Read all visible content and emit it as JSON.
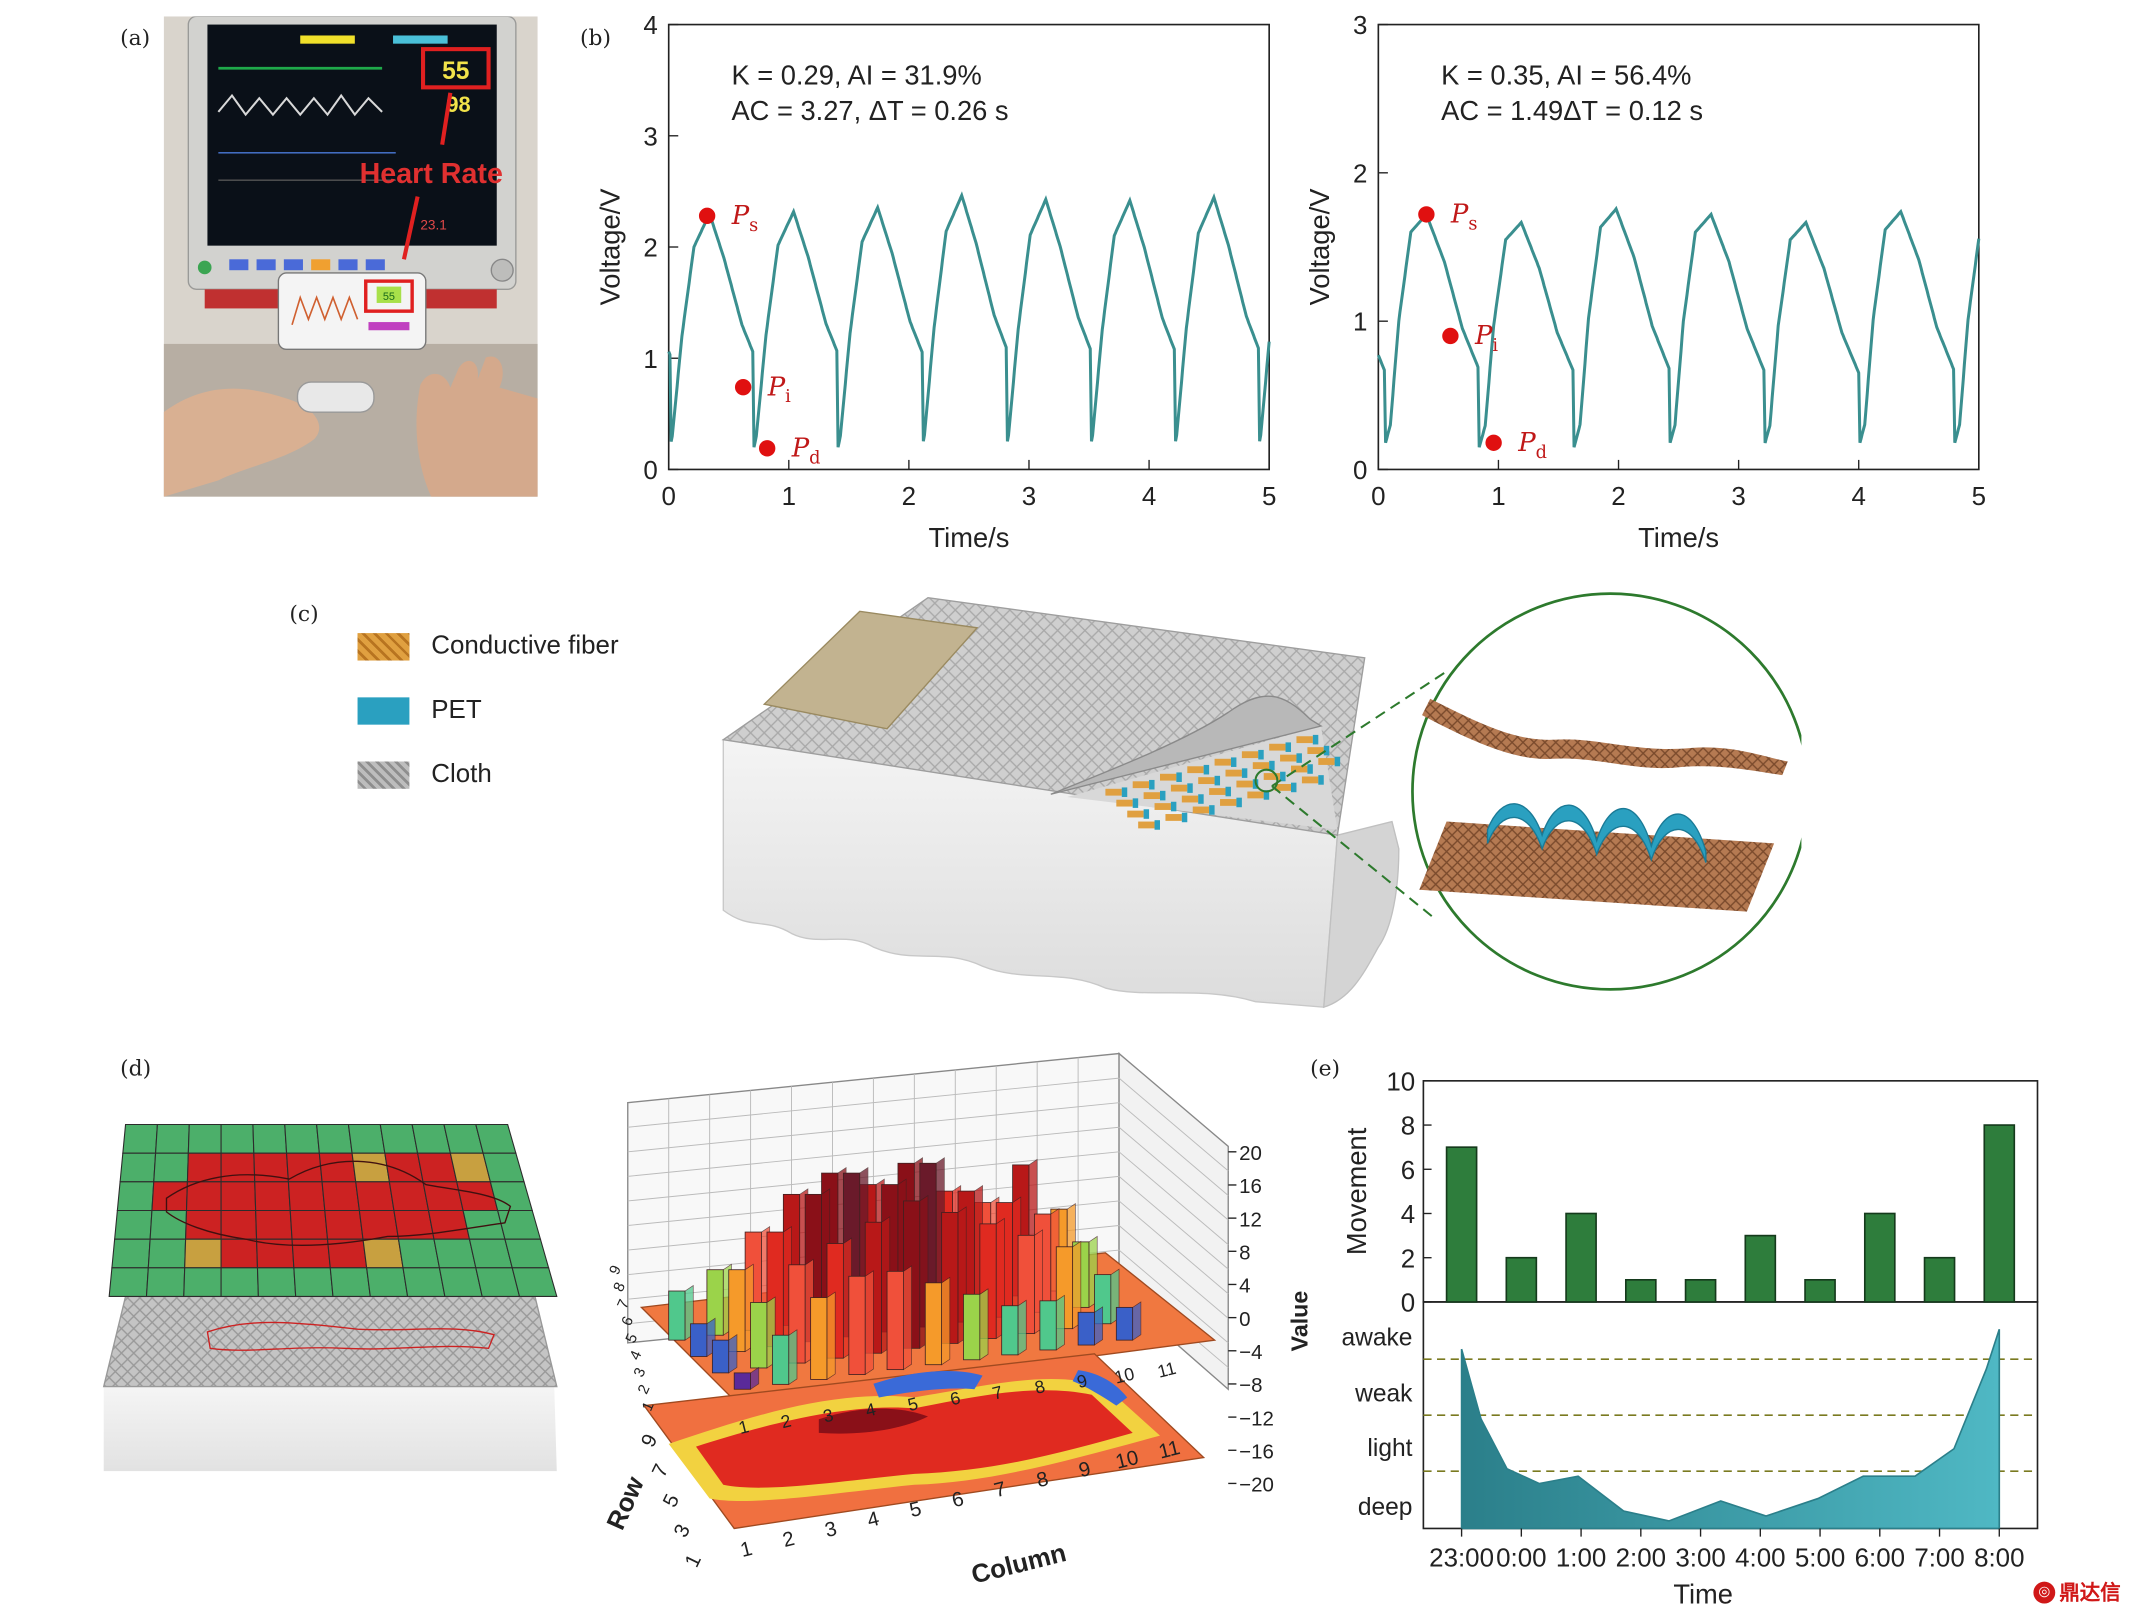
{
  "panel_labels": {
    "a": "(a)",
    "b": "(b)",
    "c": "(c)",
    "d": "(d)",
    "e": "(e)"
  },
  "panel_a": {
    "monitor_heart_rate": "55",
    "monitor_spo2": "98",
    "monitor_temp": "23.1",
    "annotation": "Heart Rate",
    "phone_heart_rate": "55"
  },
  "panel_c": {
    "legend": [
      {
        "label": "Conductive fiber",
        "color": "#e0a040"
      },
      {
        "label": "PET",
        "color": "#2aa0c0"
      },
      {
        "label": "Cloth",
        "color": "#a8a8a8"
      }
    ]
  },
  "watermark": "鼎达信",
  "colors": {
    "pulse": "#3a8f8f",
    "marker": "#e01010",
    "bar": "#2e7d3c",
    "sleep": "#4fb8c4",
    "grid_green": "#4caf6a",
    "body_red": "#cc2222"
  },
  "chart_data": [
    {
      "id": "pulse-left",
      "type": "line",
      "xlabel": "Time/s",
      "ylabel": "Voltage/V",
      "xlim": [
        0,
        5
      ],
      "ylim": [
        0,
        4
      ],
      "xticks": [
        "0",
        "1",
        "2",
        "3",
        "4",
        "5"
      ],
      "yticks": [
        "0",
        "1",
        "2",
        "3",
        "4"
      ],
      "annot_line1": "K = 0.29,  AI = 31.9%",
      "annot_line2": "AC = 3.27, ΔT = 0.26 s",
      "period": 0.7,
      "t0": 0.34,
      "peak_scale": [
        2.3,
        2.32,
        2.36,
        2.48,
        2.44,
        2.43,
        2.46
      ],
      "baseline": 0.2,
      "shape": [
        [
          0,
          0.2
        ],
        [
          0.02,
          0.3
        ],
        [
          0.1,
          1.2
        ],
        [
          0.2,
          2.0
        ],
        [
          0.33,
          2.3
        ],
        [
          0.45,
          1.9
        ],
        [
          0.6,
          1.3
        ],
        [
          0.75,
          0.9
        ],
        [
          0.85,
          0.75
        ],
        [
          0.95,
          0.7
        ],
        [
          1.05,
          0.45
        ],
        [
          1.2,
          0.22
        ],
        [
          1.35,
          0.18
        ],
        [
          1.6,
          0.2
        ]
      ],
      "markers": [
        {
          "name": "Ps",
          "label": "P",
          "sub": "s",
          "t": 0.32,
          "v": 2.28
        },
        {
          "name": "Pi",
          "label": "P",
          "sub": "i",
          "t": 0.62,
          "v": 0.74
        },
        {
          "name": "Pd",
          "label": "P",
          "sub": "d",
          "t": 0.82,
          "v": 0.19
        }
      ]
    },
    {
      "id": "pulse-right",
      "type": "line",
      "xlabel": "Time/s",
      "ylabel": "Voltage/V",
      "xlim": [
        0,
        5
      ],
      "ylim": [
        0,
        3
      ],
      "xticks": [
        "0",
        "1",
        "2",
        "3",
        "4",
        "5"
      ],
      "yticks": [
        "0",
        "1",
        "2",
        "3"
      ],
      "annot_line1": "K = 0.35,  AI = 56.4%",
      "annot_line2": "AC = 1.49ΔT = 0.12 s",
      "period": 0.79,
      "t0": 0.4,
      "peak_scale": [
        1.72,
        1.66,
        1.76,
        1.72,
        1.66,
        1.74
      ],
      "baseline": 0.15,
      "shape": [
        [
          0,
          0.15
        ],
        [
          0.05,
          0.3
        ],
        [
          0.12,
          1.0
        ],
        [
          0.22,
          1.6
        ],
        [
          0.35,
          1.72
        ],
        [
          0.5,
          1.4
        ],
        [
          0.65,
          0.95
        ],
        [
          0.8,
          0.65
        ],
        [
          0.9,
          0.55
        ],
        [
          1.0,
          0.48
        ],
        [
          1.12,
          0.3
        ],
        [
          1.25,
          0.12
        ],
        [
          1.4,
          0.1
        ],
        [
          1.58,
          0.15
        ]
      ],
      "markers": [
        {
          "name": "Ps",
          "label": "P",
          "sub": "s",
          "t": 0.4,
          "v": 1.72
        },
        {
          "name": "Pi",
          "label": "P",
          "sub": "i",
          "t": 0.6,
          "v": 0.9
        },
        {
          "name": "Pd",
          "label": "P",
          "sub": "d",
          "t": 0.96,
          "v": 0.18
        }
      ]
    },
    {
      "id": "movement",
      "type": "bar",
      "ylabel": "Movement",
      "ylim": [
        0,
        10
      ],
      "yticks": [
        "0",
        "2",
        "4",
        "6",
        "8",
        "10"
      ],
      "categories": [
        "23:00",
        "0:00",
        "1:00",
        "2:00",
        "3:00",
        "4:00",
        "5:00",
        "6:00",
        "7:00",
        "8:00"
      ],
      "values": [
        7,
        2,
        4,
        1,
        1,
        3,
        1,
        4,
        2,
        8
      ]
    },
    {
      "id": "sleep-stage",
      "type": "area",
      "xlabel": "Time",
      "levels": [
        "awake",
        "weak",
        "light",
        "deep"
      ],
      "categories": [
        "23:00",
        "0:00",
        "1:00",
        "2:00",
        "3:00",
        "4:00",
        "5:00",
        "6:00",
        "7:00",
        "8:00"
      ],
      "points": [
        [
          0,
          3.6
        ],
        [
          0.3,
          2.2
        ],
        [
          0.7,
          1.2
        ],
        [
          1.2,
          0.9
        ],
        [
          1.8,
          1.05
        ],
        [
          2.5,
          0.35
        ],
        [
          3.2,
          0.15
        ],
        [
          4,
          0.55
        ],
        [
          4.7,
          0.25
        ],
        [
          5.5,
          0.6
        ],
        [
          6.2,
          1.05
        ],
        [
          7,
          1.05
        ],
        [
          7.6,
          1.6
        ],
        [
          8.1,
          3.2
        ],
        [
          8.3,
          4.0
        ]
      ]
    },
    {
      "id": "pressure-3d",
      "type": "bar3d",
      "xlabel": "Column",
      "ylabel": "Row",
      "zlabel": "Value",
      "zticks": [
        "20",
        "16",
        "12",
        "8",
        "4",
        "0",
        "−4",
        "−8",
        "−12",
        "−16",
        "−20"
      ],
      "column_ticks": [
        "1",
        "2",
        "3",
        "4",
        "5",
        "6",
        "7",
        "8",
        "9",
        "10",
        "11"
      ],
      "row_ticks": [
        "1",
        "3",
        "5",
        "7",
        "9"
      ],
      "back_row_ticks": [
        "9",
        "8",
        "7",
        "6",
        "5",
        "4",
        "3",
        "2",
        "1"
      ]
    }
  ]
}
